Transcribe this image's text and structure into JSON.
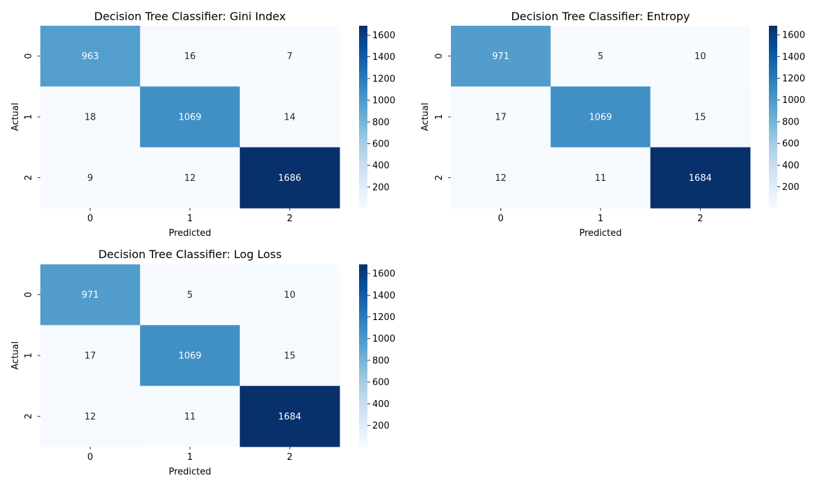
{
  "chart_data": [
    {
      "type": "heatmap",
      "title": "Decision Tree Classifier: Gini Index",
      "xlabel": "Predicted",
      "ylabel": "Actual",
      "x_categories": [
        "0",
        "1",
        "2"
      ],
      "y_categories": [
        "0",
        "1",
        "2"
      ],
      "values": [
        [
          963,
          16,
          7
        ],
        [
          18,
          1069,
          14
        ],
        [
          9,
          12,
          1686
        ]
      ],
      "colormap": "Blues",
      "colorbar": {
        "min": 7,
        "max": 1686,
        "ticks": [
          200,
          400,
          600,
          800,
          1000,
          1200,
          1400,
          1600
        ]
      }
    },
    {
      "type": "heatmap",
      "title": "Decision Tree Classifier: Entropy",
      "xlabel": "Predicted",
      "ylabel": "Actual",
      "x_categories": [
        "0",
        "1",
        "2"
      ],
      "y_categories": [
        "0",
        "1",
        "2"
      ],
      "values": [
        [
          971,
          5,
          10
        ],
        [
          17,
          1069,
          15
        ],
        [
          12,
          11,
          1684
        ]
      ],
      "colormap": "Blues",
      "colorbar": {
        "min": 5,
        "max": 1684,
        "ticks": [
          200,
          400,
          600,
          800,
          1000,
          1200,
          1400,
          1600
        ]
      }
    },
    {
      "type": "heatmap",
      "title": "Decision Tree Classifier: Log Loss",
      "xlabel": "Predicted",
      "ylabel": "Actual",
      "x_categories": [
        "0",
        "1",
        "2"
      ],
      "y_categories": [
        "0",
        "1",
        "2"
      ],
      "values": [
        [
          971,
          5,
          10
        ],
        [
          17,
          1069,
          15
        ],
        [
          12,
          11,
          1684
        ]
      ],
      "colormap": "Blues",
      "colorbar": {
        "min": 5,
        "max": 1684,
        "ticks": [
          200,
          400,
          600,
          800,
          1000,
          1200,
          1400,
          1600
        ]
      }
    }
  ]
}
